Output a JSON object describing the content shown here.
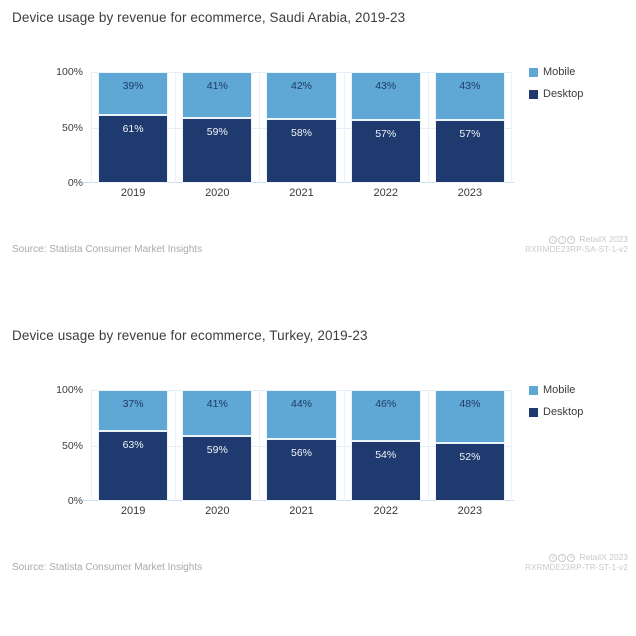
{
  "page": {
    "background": "#ffffff"
  },
  "colors": {
    "mobile": "#5fa7d4",
    "desktop": "#1e3a6e",
    "mobile_label_text": "#1f3a66",
    "desktop_label_text": "#f2f4f7",
    "gridline": "#e3edf7",
    "axis_line": "#c9ddee"
  },
  "charts": [
    {
      "title": "Device usage by revenue for ecommerce, Saudi Arabia, 2019-23",
      "source": "Source: Statista Consumer Market Insights",
      "watermark_brand": "RetailX 2023",
      "watermark_code": "RXRMDE23RP-SA-ST-1-v2"
    },
    {
      "title": "Device usage by revenue for ecommerce, Turkey, 2019-23",
      "source": "Source: Statista Consumer Market Insights",
      "watermark_brand": "RetailX 2023",
      "watermark_code": "RXRMDE23RP-TR-ST-1-v2"
    }
  ],
  "chart_data": [
    {
      "type": "bar",
      "stacked": true,
      "stacking": "percent",
      "title": "Device usage by revenue for ecommerce, Saudi Arabia, 2019-23",
      "categories": [
        "2019",
        "2020",
        "2021",
        "2022",
        "2023"
      ],
      "series": [
        {
          "name": "Mobile",
          "color": "#5fa7d4",
          "values": [
            39,
            41,
            42,
            43,
            43
          ]
        },
        {
          "name": "Desktop",
          "color": "#1e3a6e",
          "values": [
            61,
            59,
            58,
            57,
            57
          ]
        }
      ],
      "value_label_format": "{v}%",
      "xlabel": "",
      "ylabel": "",
      "ylim": [
        0,
        100
      ],
      "y_ticks": [
        "100%",
        "50%",
        "0%"
      ],
      "grid": true,
      "legend_position": "right-top"
    },
    {
      "type": "bar",
      "stacked": true,
      "stacking": "percent",
      "title": "Device usage by revenue for ecommerce, Turkey, 2019-23",
      "categories": [
        "2019",
        "2020",
        "2021",
        "2022",
        "2023"
      ],
      "series": [
        {
          "name": "Mobile",
          "color": "#5fa7d4",
          "values": [
            37,
            41,
            44,
            46,
            48
          ]
        },
        {
          "name": "Desktop",
          "color": "#1e3a6e",
          "values": [
            63,
            59,
            56,
            54,
            52
          ]
        }
      ],
      "value_label_format": "{v}%",
      "xlabel": "",
      "ylabel": "",
      "ylim": [
        0,
        100
      ],
      "y_ticks": [
        "100%",
        "50%",
        "0%"
      ],
      "grid": true,
      "legend_position": "right-top"
    }
  ]
}
